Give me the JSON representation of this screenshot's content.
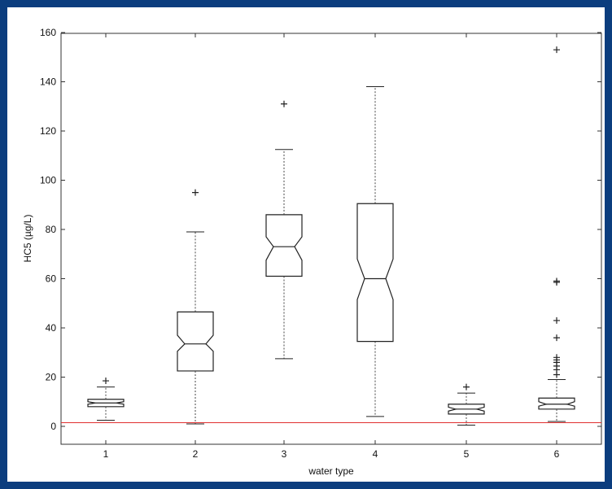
{
  "chart_data": {
    "type": "boxplot",
    "notched": true,
    "xlabel": "water type",
    "ylabel": "HC5 (µg/L)",
    "ylim": [
      -7,
      161
    ],
    "yticks": [
      0,
      20,
      40,
      60,
      80,
      100,
      120,
      140,
      160
    ],
    "grid": false,
    "reference_line": {
      "y": 1.5,
      "color": "#e03030"
    },
    "categories": [
      "1",
      "2",
      "3",
      "4",
      "5",
      "6"
    ],
    "boxes": [
      {
        "category": "1",
        "whisker_low": 2.5,
        "q1": 8,
        "median": 9.5,
        "q3": 11,
        "whisker_high": 16,
        "notch_low": 9,
        "notch_high": 10,
        "outliers": [
          18.5
        ]
      },
      {
        "category": "2",
        "whisker_low": 1,
        "q1": 22.5,
        "median": 33.5,
        "q3": 46.5,
        "whisker_high": 79,
        "notch_low": 30.5,
        "notch_high": 37,
        "outliers": [
          95
        ]
      },
      {
        "category": "3",
        "whisker_low": 27.5,
        "q1": 61,
        "median": 73,
        "q3": 86,
        "whisker_high": 112.5,
        "notch_low": 67.5,
        "notch_high": 77,
        "outliers": [
          131
        ]
      },
      {
        "category": "4",
        "whisker_low": 4,
        "q1": 34.5,
        "median": 60,
        "q3": 90.5,
        "whisker_high": 138,
        "notch_low": 51.5,
        "notch_high": 68,
        "outliers": []
      },
      {
        "category": "5",
        "whisker_low": 0.5,
        "q1": 5,
        "median": 7,
        "q3": 9,
        "whisker_high": 13.5,
        "notch_low": 6.2,
        "notch_high": 7.8,
        "outliers": [
          16
        ]
      },
      {
        "category": "6",
        "whisker_low": 2,
        "q1": 7,
        "median": 9,
        "q3": 11.5,
        "whisker_high": 19,
        "notch_low": 8.2,
        "notch_high": 10,
        "outliers": [
          21,
          23,
          24.5,
          26,
          27,
          28,
          36,
          43,
          58.5,
          59,
          153
        ]
      }
    ]
  }
}
